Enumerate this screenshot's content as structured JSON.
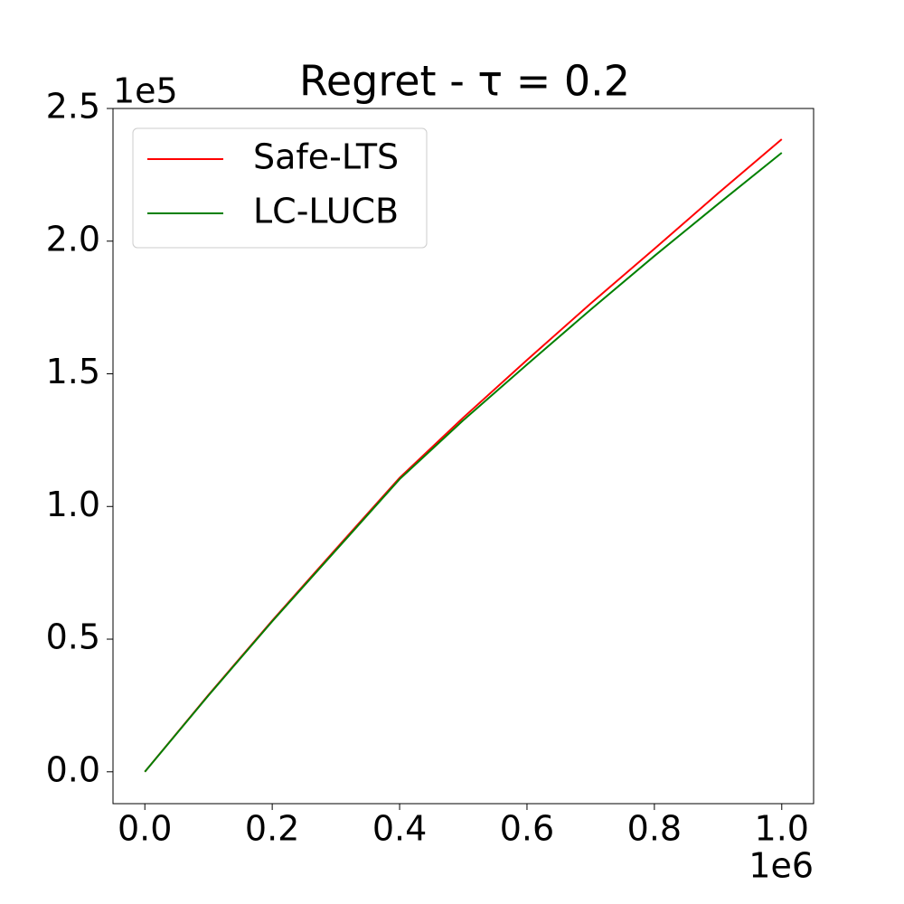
{
  "chart_data": {
    "type": "line",
    "title": "Regret - τ = 0.2",
    "x": [
      0,
      100000,
      200000,
      300000,
      400000,
      500000,
      600000,
      700000,
      800000,
      900000,
      1000000
    ],
    "series": [
      {
        "name": "Safe-LTS",
        "color": "#ff0000",
        "values": [
          0,
          29000,
          57000,
          84000,
          110800,
          133500,
          155200,
          176500,
          197100,
          218000,
          238400
        ]
      },
      {
        "name": "LC-LUCB",
        "color": "#008000",
        "values": [
          0,
          28800,
          56700,
          83500,
          110300,
          132500,
          153500,
          174200,
          194400,
          214000,
          233300
        ]
      }
    ],
    "xlim": [
      -50000,
      1050000
    ],
    "xticks": [
      {
        "value": 0,
        "label": "0.0"
      },
      {
        "value": 200000,
        "label": "0.2"
      },
      {
        "value": 400000,
        "label": "0.4"
      },
      {
        "value": 600000,
        "label": "0.6"
      },
      {
        "value": 800000,
        "label": "0.8"
      },
      {
        "value": 1000000,
        "label": "1.0"
      }
    ],
    "x_offset_label": "1e6",
    "ylim": [
      -12000,
      250000
    ],
    "yticks": [
      {
        "value": 0,
        "label": "0.0"
      },
      {
        "value": 50000,
        "label": "0.5"
      },
      {
        "value": 100000,
        "label": "1.0"
      },
      {
        "value": 150000,
        "label": "1.5"
      },
      {
        "value": 200000,
        "label": "2.0"
      },
      {
        "value": 250000,
        "label": "2.5"
      }
    ],
    "y_offset_label": "1e5",
    "legend": "upper left",
    "grid": false
  }
}
